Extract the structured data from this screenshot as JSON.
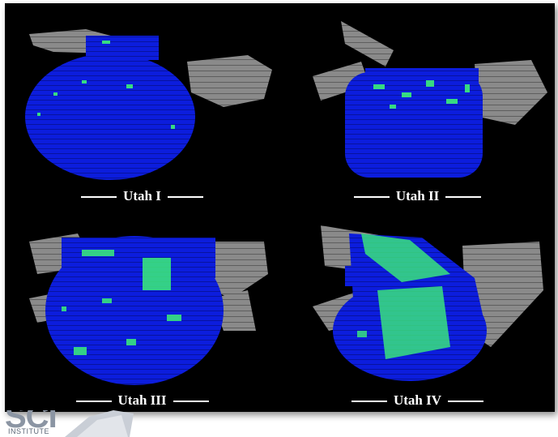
{
  "panels": [
    {
      "caption": "Utah I"
    },
    {
      "caption": "Utah II"
    },
    {
      "caption": "Utah III"
    },
    {
      "caption": "Utah IV"
    }
  ],
  "logo": {
    "text": "SCI",
    "subtext": "INSTITUTE"
  },
  "colors": {
    "background": "#000000",
    "tissue": "#0a1be0",
    "highlight": "#3cf07a",
    "surrounding": "#8a8a8a"
  }
}
